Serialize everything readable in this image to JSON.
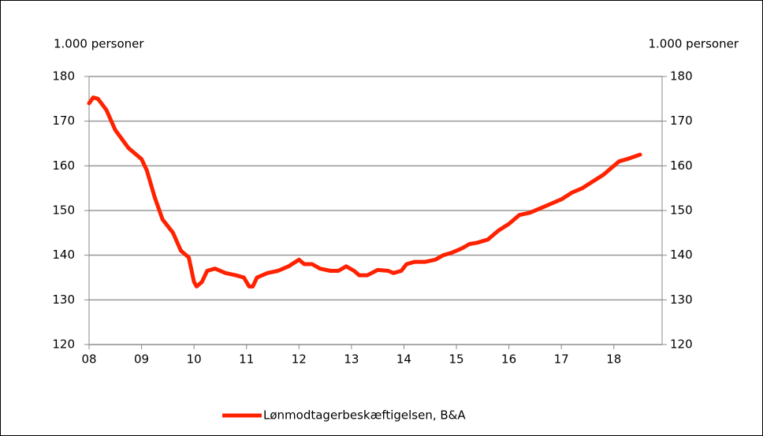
{
  "chart_data": {
    "type": "line",
    "y_label": "1.000 personer",
    "y2_label": "1.000 personer",
    "x": [
      8.0,
      8.08,
      8.17,
      8.33,
      8.5,
      8.75,
      9.0,
      9.1,
      9.25,
      9.4,
      9.6,
      9.75,
      9.9,
      10.0,
      10.05,
      10.15,
      10.25,
      10.4,
      10.6,
      10.8,
      10.95,
      11.05,
      11.12,
      11.2,
      11.4,
      11.6,
      11.8,
      12.0,
      12.1,
      12.25,
      12.4,
      12.6,
      12.75,
      12.9,
      13.05,
      13.15,
      13.3,
      13.5,
      13.7,
      13.8,
      13.95,
      14.05,
      14.2,
      14.4,
      14.6,
      14.75,
      14.9,
      15.1,
      15.25,
      15.4,
      15.6,
      15.8,
      16.0,
      16.2,
      16.4,
      16.6,
      16.8,
      17.0,
      17.2,
      17.4,
      17.6,
      17.8,
      17.95,
      18.1,
      18.25,
      18.5
    ],
    "series": [
      {
        "name": "Lønmodtagerbeskæftigelsen, B&A",
        "color": "#ff2200",
        "values": [
          174,
          175.3,
          175,
          172.5,
          168,
          164,
          161.5,
          159,
          153,
          148,
          145,
          141,
          139.5,
          134,
          133,
          134,
          136.5,
          137,
          136,
          135.5,
          135,
          133,
          133,
          135,
          136,
          136.5,
          137.5,
          139,
          138,
          138,
          137,
          136.5,
          136.5,
          137.5,
          136.5,
          135.5,
          135.5,
          136.7,
          136.5,
          136,
          136.5,
          138,
          138.5,
          138.5,
          139,
          140,
          140.5,
          141.5,
          142.5,
          142.8,
          143.5,
          145.5,
          147,
          149,
          149.5,
          150.5,
          151.5,
          152.5,
          154,
          155,
          156.5,
          158,
          159.5,
          161,
          161.5,
          162.5
        ]
      }
    ],
    "xlim": [
      8,
      18.92
    ],
    "xticks": [
      {
        "value": 8,
        "label": "08"
      },
      {
        "value": 9,
        "label": "09"
      },
      10,
      11,
      12,
      13,
      14,
      15,
      16,
      17,
      18
    ],
    "ylim": [
      120,
      180
    ],
    "yticks": [
      120,
      130,
      140,
      150,
      160,
      170,
      180
    ],
    "y2lim": [
      120,
      180
    ],
    "y2ticks": [
      120,
      130,
      140,
      150,
      160,
      170,
      180
    ],
    "grid": true,
    "legend": "bottom"
  }
}
